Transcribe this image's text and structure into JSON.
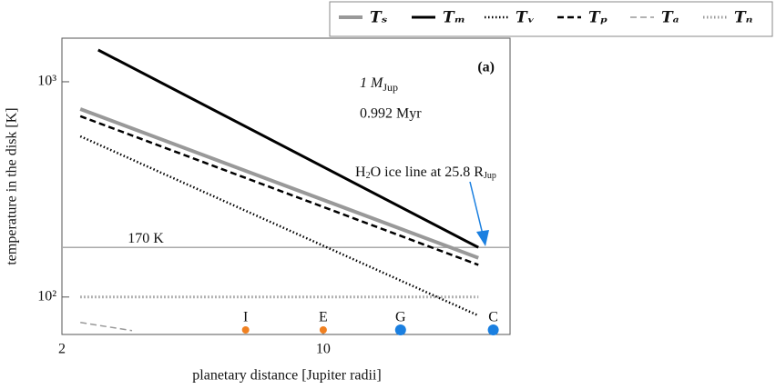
{
  "chart_data": {
    "type": "line",
    "xlabel": "planetary distance [Jupiter radii]",
    "ylabel": "temperature in the disk [K]",
    "xscale": "log",
    "yscale": "log",
    "xlim": [
      2,
      31.6
    ],
    "ylim": [
      67,
      1594
    ],
    "xticks": [
      2,
      10
    ],
    "yticks": [
      {
        "value": 100,
        "label": "10²"
      },
      {
        "value": 1000,
        "label": "10³"
      }
    ],
    "panel_label": "(a)",
    "mass_label": {
      "text": "1 M",
      "sub": "Jup"
    },
    "age_label": "0.992 Myr",
    "ice_line_label": {
      "pre": "H",
      "sub1": "2",
      "mid": "O ice line at 25.8 R",
      "sub2": "Jup",
      "color": "#1a7fe0"
    },
    "hline": {
      "value": 170,
      "label": "170 K",
      "color": "#aaaaaa"
    },
    "legend": "top-right",
    "series": [
      {
        "name": "Tₛ",
        "color": "#999999",
        "dash": "solid",
        "width": 4,
        "x": [
          2.24,
          26
        ],
        "values": [
          747,
          152
        ]
      },
      {
        "name": "Tₘ",
        "color": "#000000",
        "dash": "solid",
        "width": 3,
        "x": [
          2.5,
          26
        ],
        "values": [
          1405,
          170
        ]
      },
      {
        "name": "Tᵥ",
        "color": "#000000",
        "dash": "dotted",
        "width": 2.5,
        "x": [
          2.24,
          26
        ],
        "values": [
          558,
          82
        ]
      },
      {
        "name": "Tₚ",
        "color": "#000000",
        "dash": "dashed",
        "width": 2.5,
        "x": [
          2.24,
          26
        ],
        "values": [
          692,
          141
        ]
      },
      {
        "name": "Tₐ",
        "color": "#999999",
        "dash": "dashed",
        "width": 1.5,
        "x": [
          2.24,
          3.08
        ],
        "values": [
          76.2,
          69.8
        ]
      },
      {
        "name": "Tₙ",
        "color": "#999999",
        "dash": "dotted",
        "width": 3,
        "x": [
          2.24,
          26
        ],
        "values": [
          100,
          100
        ]
      }
    ],
    "satellites": [
      {
        "label": "I",
        "x": 6.2,
        "color": "#f08020",
        "size": 4
      },
      {
        "label": "E",
        "x": 10,
        "color": "#f08020",
        "size": 4
      },
      {
        "label": "G",
        "x": 16.1,
        "color": "#1a7fe0",
        "size": 6
      },
      {
        "label": "C",
        "x": 28.5,
        "color": "#1a7fe0",
        "size": 6
      }
    ]
  }
}
